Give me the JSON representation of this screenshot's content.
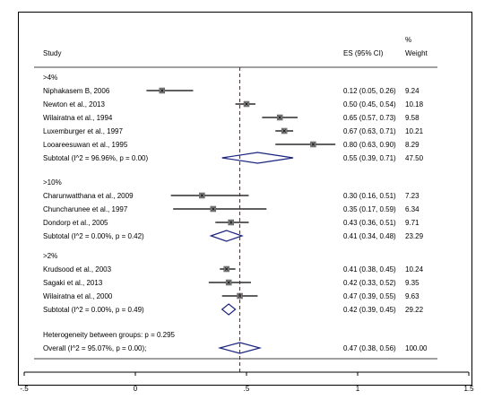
{
  "chart_data": {
    "type": "forest",
    "header": {
      "study": "Study",
      "es": "ES (95% CI)",
      "weight_line1": "%",
      "weight_line2": "Weight"
    },
    "x_ticks": [
      "-.5",
      "0",
      ".5",
      "1",
      "1.5"
    ],
    "xlim": [
      -0.5,
      1.5
    ],
    "reference_line": 0.47,
    "groups": [
      {
        "label": ">4%",
        "studies": [
          {
            "name": "Niphakasem B, 2006",
            "es": 0.12,
            "lo": 0.05,
            "hi": 0.26,
            "ci_text": "0.12 (0.05, 0.26)",
            "weight": "9.24"
          },
          {
            "name": "Newton et al., 2013",
            "es": 0.5,
            "lo": 0.45,
            "hi": 0.54,
            "ci_text": "0.50 (0.45, 0.54)",
            "weight": "10.18"
          },
          {
            "name": "Wilairatna et al., 1994",
            "es": 0.65,
            "lo": 0.57,
            "hi": 0.73,
            "ci_text": "0.65 (0.57, 0.73)",
            "weight": "9.58"
          },
          {
            "name": "Luxemburger et al., 1997",
            "es": 0.67,
            "lo": 0.63,
            "hi": 0.71,
            "ci_text": "0.67 (0.63, 0.71)",
            "weight": "10.21"
          },
          {
            "name": "Looareesuwan et al., 1995",
            "es": 0.8,
            "lo": 0.63,
            "hi": 0.9,
            "ci_text": "0.80 (0.63, 0.90)",
            "weight": "8.29"
          }
        ],
        "subtotal": {
          "label": "Subtotal  (I^2 = 96.96%, p = 0.00)",
          "es": 0.55,
          "lo": 0.39,
          "hi": 0.71,
          "ci_text": "0.55 (0.39, 0.71)",
          "weight": "47.50"
        }
      },
      {
        "label": ">10%",
        "studies": [
          {
            "name": "Charunwatthana et al., 2009",
            "es": 0.3,
            "lo": 0.16,
            "hi": 0.51,
            "ci_text": "0.30 (0.16, 0.51)",
            "weight": "7.23"
          },
          {
            "name": "Chuncharunee et al., 1997",
            "es": 0.35,
            "lo": 0.17,
            "hi": 0.59,
            "ci_text": "0.35 (0.17, 0.59)",
            "weight": "6.34"
          },
          {
            "name": "Dondorp et al., 2005",
            "es": 0.43,
            "lo": 0.36,
            "hi": 0.51,
            "ci_text": "0.43 (0.36, 0.51)",
            "weight": "9.71"
          }
        ],
        "subtotal": {
          "label": "Subtotal  (I^2 = 0.00%, p = 0.42)",
          "es": 0.41,
          "lo": 0.34,
          "hi": 0.48,
          "ci_text": "0.41 (0.34, 0.48)",
          "weight": "23.29"
        }
      },
      {
        "label": ">2%",
        "studies": [
          {
            "name": "Krudsood et al., 2003",
            "es": 0.41,
            "lo": 0.38,
            "hi": 0.45,
            "ci_text": "0.41 (0.38, 0.45)",
            "weight": "10.24"
          },
          {
            "name": "Sagaki et al., 2013",
            "es": 0.42,
            "lo": 0.33,
            "hi": 0.52,
            "ci_text": "0.42 (0.33, 0.52)",
            "weight": "9.35"
          },
          {
            "name": "Wilairatna et al., 2000",
            "es": 0.47,
            "lo": 0.39,
            "hi": 0.55,
            "ci_text": "0.47 (0.39, 0.55)",
            "weight": "9.63"
          }
        ],
        "subtotal": {
          "label": "Subtotal  (I^2 = 0.00%, p = 0.49)",
          "es": 0.42,
          "lo": 0.39,
          "hi": 0.45,
          "ci_text": "0.42 (0.39, 0.45)",
          "weight": "29.22"
        }
      }
    ],
    "heterogeneity": "Heterogeneity between groups: p = 0.295",
    "overall": {
      "label": "Overall  (I^2 = 95.07%, p = 0.00);",
      "es": 0.47,
      "lo": 0.38,
      "hi": 0.56,
      "ci_text": "0.47 (0.38, 0.56)",
      "weight": "100.00"
    },
    "colors": {
      "diamond": "#1a237e",
      "reference_line": "#b00000",
      "marker": "#808080",
      "frame": "#000000"
    }
  }
}
